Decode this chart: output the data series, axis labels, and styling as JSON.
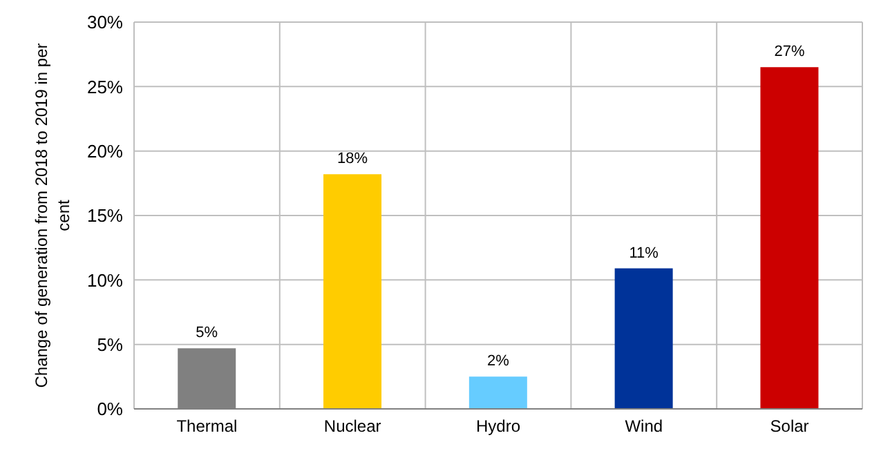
{
  "chart_data": {
    "type": "bar",
    "ylabel": "Change of generation from 2018 to 2019 in per cent",
    "categories": [
      "Thermal",
      "Nuclear",
      "Hydro",
      "Wind",
      "Solar"
    ],
    "values": [
      4.7,
      18.2,
      2.5,
      10.9,
      26.5
    ],
    "colors": [
      "#808080",
      "#ffcc00",
      "#66ccff",
      "#003399",
      "#cc0000"
    ],
    "value_labels": [
      "5%",
      "18%",
      "2%",
      "11%",
      "27%"
    ],
    "ylim": [
      0,
      30
    ],
    "yticks": [
      {
        "value": 0,
        "label": "0%"
      },
      {
        "value": 5,
        "label": "5%"
      },
      {
        "value": 10,
        "label": "10%"
      },
      {
        "value": 15,
        "label": "15%"
      },
      {
        "value": 20,
        "label": "20%"
      },
      {
        "value": 25,
        "label": "25%"
      },
      {
        "value": 30,
        "label": "30%"
      }
    ],
    "grid": true
  }
}
